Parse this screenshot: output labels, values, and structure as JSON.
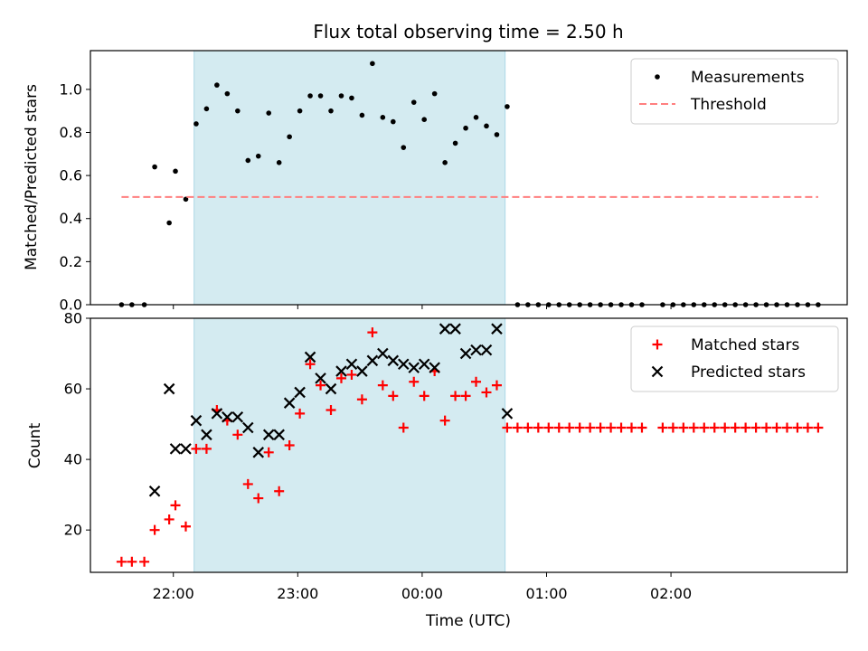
{
  "chart_data": [
    {
      "type": "scatter",
      "title": "Flux total observing time = 2.50 h",
      "ylabel": "Matched/Predicted stars",
      "xlabel": "",
      "x_is_shared_time_axis": true,
      "ylim": [
        0,
        1.18
      ],
      "yticks": [
        0.0,
        0.2,
        0.4,
        0.6,
        0.8,
        1.0
      ],
      "ytick_labels": [
        "0.0",
        "0.2",
        "0.4",
        "0.6",
        "0.8",
        "1.0"
      ],
      "legend_position": "top-right",
      "shaded_interval": [
        "22:10",
        "24:40"
      ],
      "shaded_color": "#d4ebf1",
      "series": [
        {
          "name": "Measurements",
          "marker": "dot",
          "color": "#000000",
          "x": [
            "21:35",
            "21:40",
            "21:46",
            "21:51",
            "21:58",
            "22:01",
            "22:06",
            "22:11",
            "22:16",
            "22:21",
            "22:26",
            "22:31",
            "22:36",
            "22:41",
            "22:46",
            "22:51",
            "22:56",
            "23:01",
            "23:06",
            "23:11",
            "23:16",
            "23:21",
            "23:26",
            "23:31",
            "23:36",
            "23:41",
            "23:46",
            "23:51",
            "23:56",
            "24:01",
            "24:06",
            "24:11",
            "24:16",
            "24:21",
            "24:26",
            "24:31",
            "24:36",
            "24:41",
            "24:46",
            "24:51",
            "24:56",
            "25:01",
            "25:06",
            "25:11",
            "25:16",
            "25:21",
            "25:26",
            "25:31",
            "25:36",
            "25:41",
            "25:46",
            "25:56",
            "26:01",
            "26:06",
            "26:11",
            "26:16",
            "26:21",
            "26:26",
            "26:31",
            "26:36",
            "26:41",
            "26:46",
            "26:51",
            "26:56",
            "27:01",
            "27:06",
            "27:11"
          ],
          "y": [
            0.0,
            0.0,
            0.0,
            0.64,
            0.38,
            0.62,
            0.49,
            0.84,
            0.91,
            1.02,
            0.98,
            0.9,
            0.67,
            0.69,
            0.89,
            0.66,
            0.78,
            0.9,
            0.97,
            0.97,
            0.9,
            0.97,
            0.96,
            0.88,
            1.12,
            0.87,
            0.85,
            0.73,
            0.94,
            0.86,
            0.98,
            0.66,
            0.75,
            0.82,
            0.87,
            0.83,
            0.79,
            0.92,
            0.0,
            0.0,
            0.0,
            0.0,
            0.0,
            0.0,
            0.0,
            0.0,
            0.0,
            0.0,
            0.0,
            0.0,
            0.0,
            0.0,
            0.0,
            0.0,
            0.0,
            0.0,
            0.0,
            0.0,
            0.0,
            0.0,
            0.0,
            0.0,
            0.0,
            0.0,
            0.0,
            0.0,
            0.0
          ]
        },
        {
          "name": "Threshold",
          "marker": "dashed-line",
          "color": "#ff7f7f",
          "x": [
            "21:35",
            "27:11"
          ],
          "y": [
            0.5,
            0.5
          ]
        }
      ]
    },
    {
      "type": "scatter",
      "title": "",
      "ylabel": "Count",
      "xlabel": "Time (UTC)",
      "ylim": [
        8,
        80
      ],
      "yticks": [
        20,
        40,
        60,
        80
      ],
      "ytick_labels": [
        "20",
        "40",
        "60",
        "80"
      ],
      "xticks": [
        "22:00",
        "23:00",
        "24:00",
        "25:00",
        "26:00"
      ],
      "xtick_labels": [
        "22:00",
        "23:00",
        "00:00",
        "01:00",
        "02:00"
      ],
      "legend_position": "top-right",
      "shaded_interval": [
        "22:10",
        "24:40"
      ],
      "shaded_color": "#d4ebf1",
      "series": [
        {
          "name": "Matched stars",
          "marker": "plus",
          "color": "#ff0000",
          "x": [
            "21:35",
            "21:40",
            "21:46",
            "21:51",
            "21:58",
            "22:01",
            "22:06",
            "22:11",
            "22:16",
            "22:21",
            "22:26",
            "22:31",
            "22:36",
            "22:41",
            "22:46",
            "22:51",
            "22:56",
            "23:01",
            "23:06",
            "23:11",
            "23:16",
            "23:21",
            "23:26",
            "23:31",
            "23:36",
            "23:41",
            "23:46",
            "23:51",
            "23:56",
            "24:01",
            "24:06",
            "24:11",
            "24:16",
            "24:21",
            "24:26",
            "24:31",
            "24:36",
            "24:41",
            "24:46",
            "24:51",
            "24:56",
            "25:01",
            "25:06",
            "25:11",
            "25:16",
            "25:21",
            "25:26",
            "25:31",
            "25:36",
            "25:41",
            "25:46",
            "25:56",
            "26:01",
            "26:06",
            "26:11",
            "26:16",
            "26:21",
            "26:26",
            "26:31",
            "26:36",
            "26:41",
            "26:46",
            "26:51",
            "26:56",
            "27:01",
            "27:06",
            "27:11"
          ],
          "y": [
            11,
            11,
            11,
            20,
            23,
            27,
            21,
            43,
            43,
            54,
            51,
            47,
            33,
            29,
            42,
            31,
            44,
            53,
            67,
            61,
            54,
            63,
            64,
            57,
            76,
            61,
            58,
            49,
            62,
            58,
            65,
            51,
            58,
            58,
            62,
            59,
            61,
            49,
            49,
            49,
            49,
            49,
            49,
            49,
            49,
            49,
            49,
            49,
            49,
            49,
            49,
            49,
            49,
            49,
            49,
            49,
            49,
            49,
            49,
            49,
            49,
            49,
            49,
            49,
            49,
            49,
            49
          ]
        },
        {
          "name": "Predicted stars",
          "marker": "x",
          "color": "#000000",
          "x": [
            "21:51",
            "21:58",
            "22:01",
            "22:06",
            "22:11",
            "22:16",
            "22:21",
            "22:26",
            "22:31",
            "22:36",
            "22:41",
            "22:46",
            "22:51",
            "22:56",
            "23:01",
            "23:06",
            "23:11",
            "23:16",
            "23:21",
            "23:26",
            "23:31",
            "23:36",
            "23:41",
            "23:46",
            "23:51",
            "23:56",
            "24:01",
            "24:06",
            "24:11",
            "24:16",
            "24:21",
            "24:26",
            "24:31",
            "24:36",
            "24:41"
          ],
          "y": [
            31,
            60,
            43,
            43,
            51,
            47,
            53,
            52,
            52,
            49,
            42,
            47,
            47,
            56,
            59,
            69,
            63,
            60,
            65,
            67,
            65,
            68,
            70,
            68,
            67,
            66,
            67,
            66,
            77,
            77,
            70,
            71,
            71,
            77,
            53
          ]
        }
      ]
    }
  ]
}
